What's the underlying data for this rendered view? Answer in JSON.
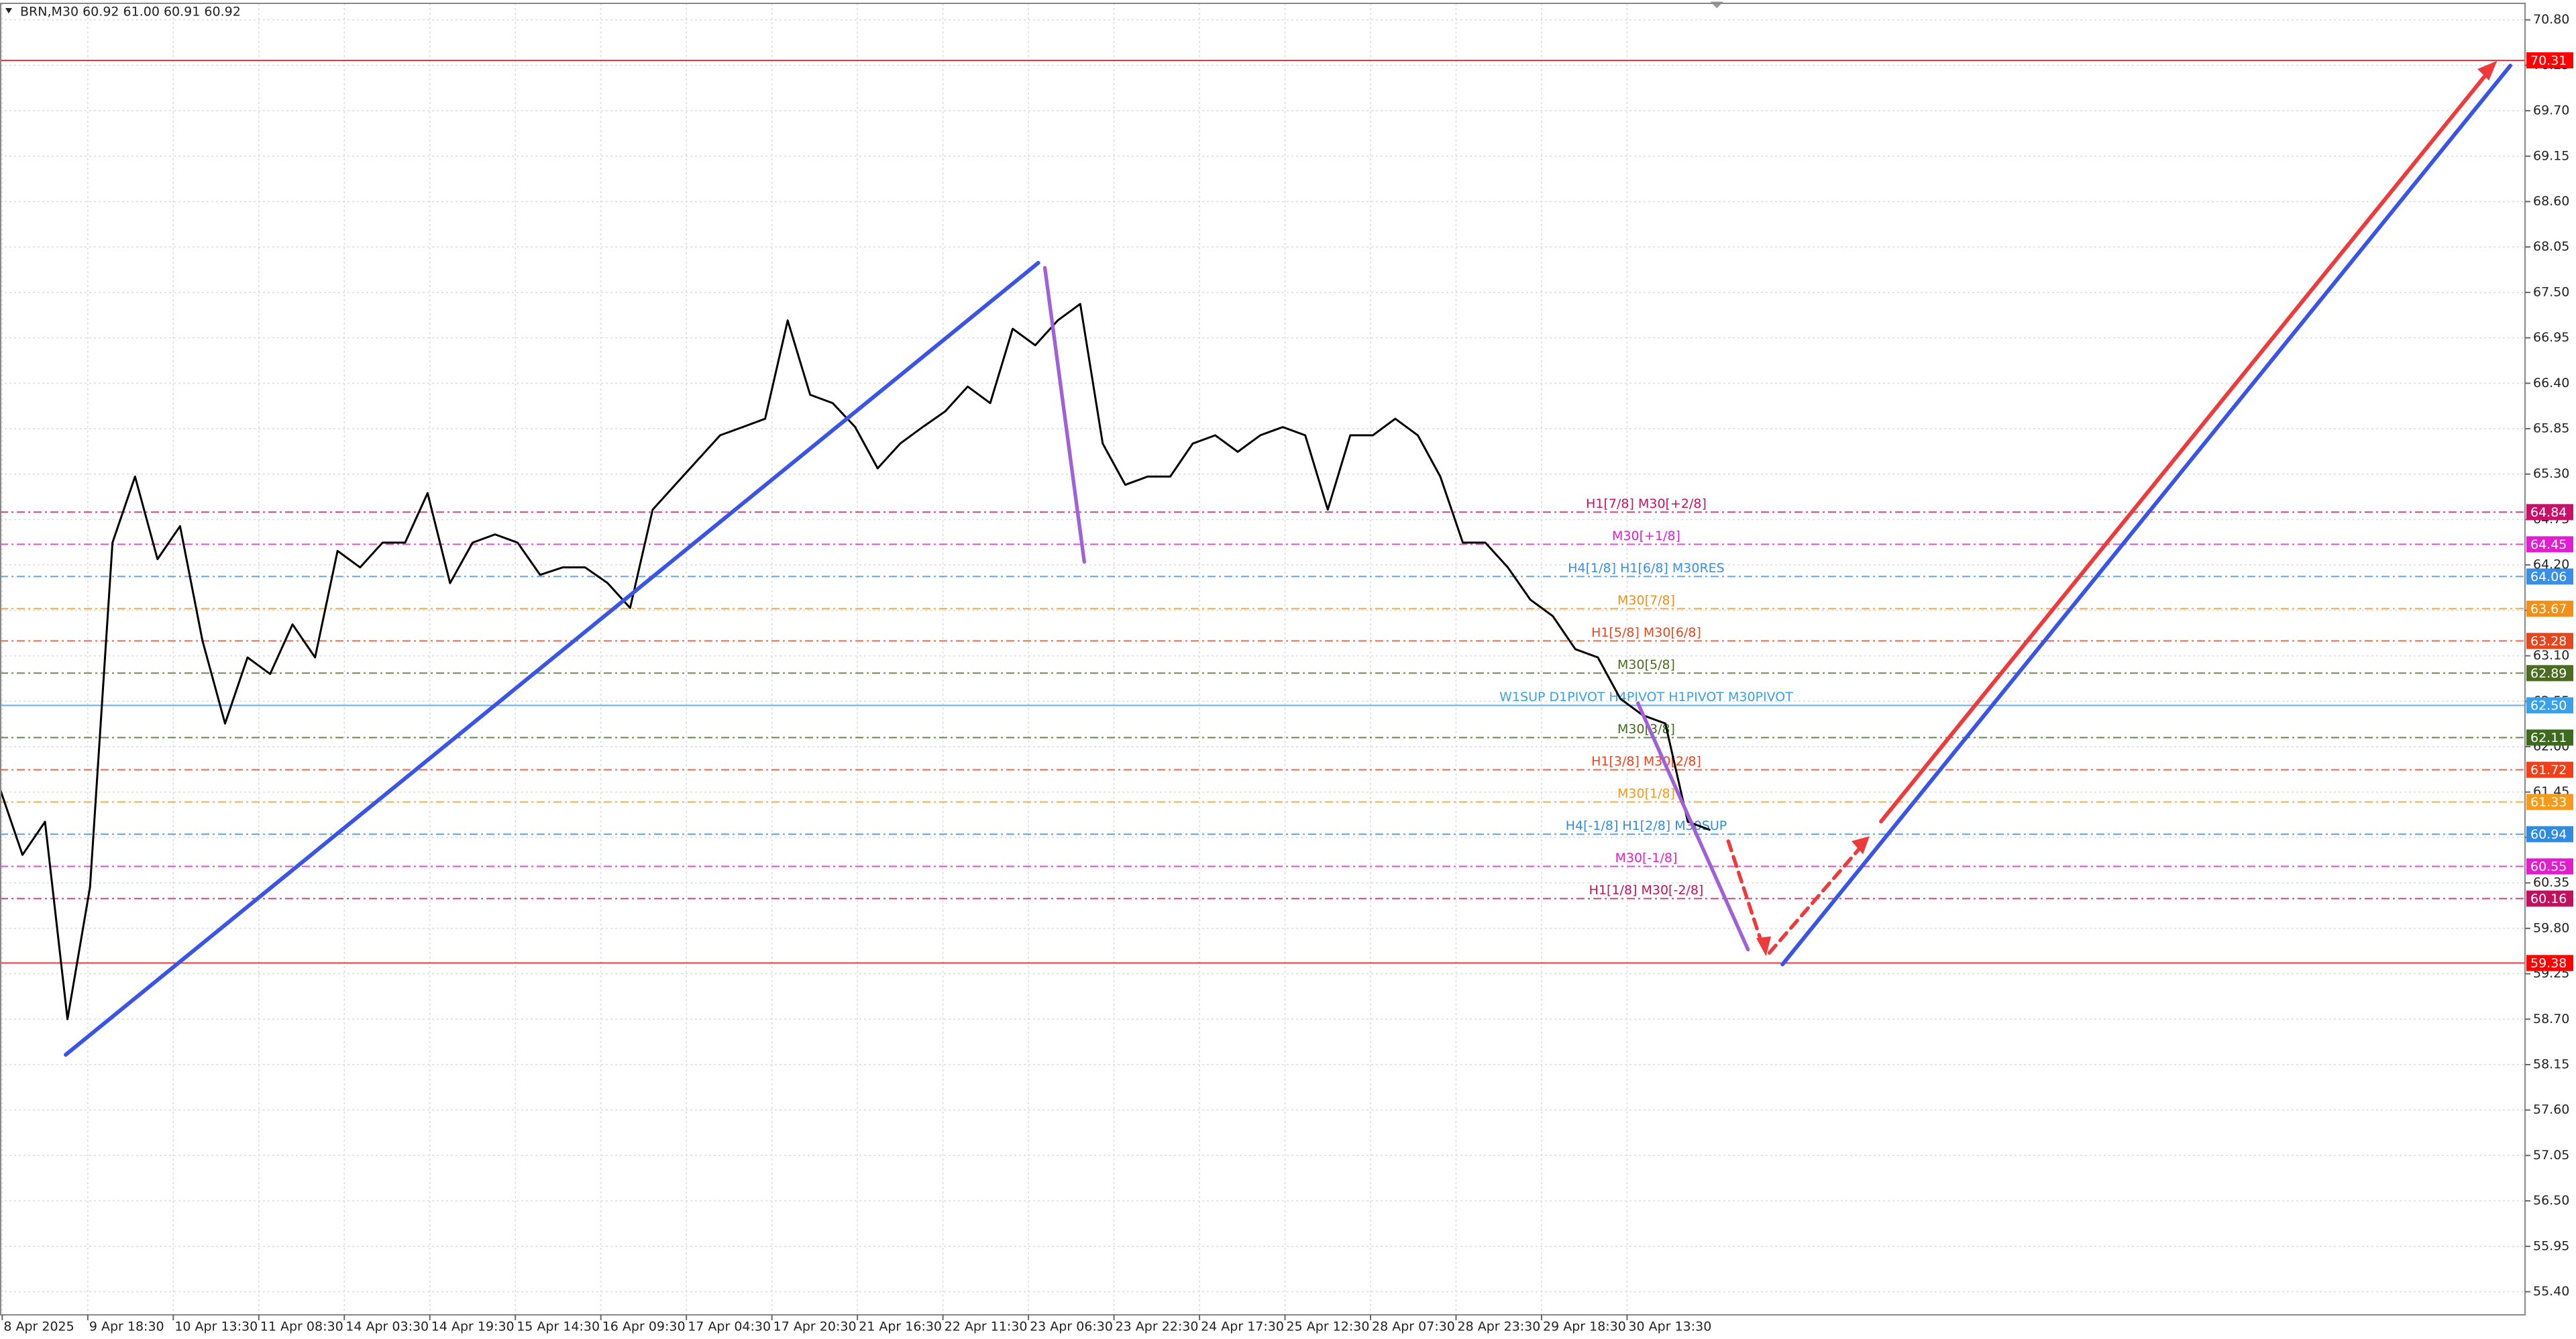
{
  "chart_data": {
    "type": "line",
    "title": "BRN,M30  60.92 61.00 60.91 60.92",
    "color": "#000000",
    "grid": true,
    "x": [
      0,
      10,
      20,
      30,
      40,
      50,
      60,
      70,
      80,
      90,
      100,
      110,
      120,
      130,
      140,
      150,
      160,
      170,
      180,
      190,
      200,
      210,
      220,
      230,
      240,
      250,
      260,
      270,
      280,
      290,
      300,
      310,
      320,
      330,
      340,
      350,
      360,
      370,
      380,
      390,
      400,
      410,
      420,
      430,
      440,
      450,
      460,
      470,
      480,
      490,
      500,
      510,
      520,
      530,
      540,
      550,
      560,
      570,
      580,
      590,
      600,
      610,
      620,
      630,
      640,
      650,
      660,
      670,
      680,
      690,
      700,
      710,
      720,
      730,
      740,
      750,
      760
    ],
    "values": [
      61.49,
      60.69,
      61.09,
      58.7,
      60.3,
      64.47,
      65.27,
      64.27,
      64.67,
      63.28,
      62.28,
      63.08,
      62.88,
      63.48,
      63.08,
      64.37,
      64.17,
      64.47,
      64.47,
      65.07,
      63.98,
      64.47,
      64.57,
      64.47,
      64.08,
      64.17,
      64.17,
      63.98,
      63.68,
      64.87,
      65.17,
      65.47,
      65.77,
      65.87,
      65.97,
      67.16,
      66.26,
      66.16,
      65.87,
      65.37,
      65.67,
      65.87,
      66.06,
      66.36,
      66.16,
      67.06,
      66.86,
      67.16,
      67.36,
      65.67,
      65.17,
      65.27,
      65.27,
      65.67,
      65.77,
      65.57,
      65.77,
      65.87,
      65.77,
      64.87,
      65.77,
      65.77,
      65.97,
      65.77,
      65.27,
      64.47,
      64.47,
      64.17,
      63.78,
      63.58,
      63.18,
      63.08,
      62.58,
      62.38,
      62.28,
      61.09,
      60.99
    ],
    "xlim": [
      0,
      1122
    ],
    "ylim": [
      55.12,
      71.0
    ],
    "xticks": [
      {
        "value": 1,
        "label": "8 Apr 2025"
      },
      {
        "value": 39,
        "label": "9 Apr 18:30"
      },
      {
        "value": 77,
        "label": "10 Apr 13:30"
      },
      {
        "value": 115,
        "label": "11 Apr 08:30"
      },
      {
        "value": 153,
        "label": "14 Apr 03:30"
      },
      {
        "value": 191,
        "label": "14 Apr 19:30"
      },
      {
        "value": 229,
        "label": "15 Apr 14:30"
      },
      {
        "value": 267,
        "label": "16 Apr 09:30"
      },
      {
        "value": 305,
        "label": "17 Apr 04:30"
      },
      {
        "value": 343,
        "label": "17 Apr 20:30"
      },
      {
        "value": 381,
        "label": "21 Apr 16:30"
      },
      {
        "value": 419,
        "label": "22 Apr 11:30"
      },
      {
        "value": 457,
        "label": "23 Apr 06:30"
      },
      {
        "value": 495,
        "label": "23 Apr 22:30"
      },
      {
        "value": 533,
        "label": "24 Apr 17:30"
      },
      {
        "value": 571,
        "label": "25 Apr 12:30"
      },
      {
        "value": 609,
        "label": "28 Apr 07:30"
      },
      {
        "value": 647,
        "label": "28 Apr 23:30"
      },
      {
        "value": 685,
        "label": "29 Apr 18:30"
      },
      {
        "value": 723,
        "label": "30 Apr 13:30"
      }
    ],
    "yticks": [
      {
        "value": 70.8,
        "label": "70.80"
      },
      70.25,
      {
        "value": 69.7,
        "label": "69.70"
      },
      69.15,
      {
        "value": 68.6,
        "label": "68.60"
      },
      68.05,
      {
        "value": 67.5,
        "label": "67.50"
      },
      66.95,
      {
        "value": 66.4,
        "label": "66.40"
      },
      65.85,
      {
        "value": 65.3,
        "label": "65.30"
      },
      64.75,
      {
        "value": 64.2,
        "label": "64.20"
      },
      63.65,
      {
        "value": 63.1,
        "label": "63.10"
      },
      62.55,
      {
        "value": 62.0,
        "label": "62.00"
      },
      61.45,
      {
        "value": 60.9,
        "label": "60.90"
      },
      60.35,
      {
        "value": 59.8,
        "label": "59.80"
      },
      59.25,
      {
        "value": 58.7,
        "label": "58.70"
      },
      58.15,
      {
        "value": 57.6,
        "label": "57.60"
      },
      57.05,
      {
        "value": 56.5,
        "label": "56.50"
      },
      55.95,
      {
        "value": 55.4,
        "label": "55.40"
      }
    ],
    "levels": [
      {
        "value": 70.31,
        "tag": "70.31",
        "color": "#ff0000",
        "style": "solid"
      },
      {
        "value": 64.84,
        "tag": "64.84",
        "label": "H1[7/8] M30[+2/8]",
        "color": "#c8106a",
        "style": "dashdot"
      },
      {
        "value": 64.45,
        "tag": "64.45",
        "label": "M30[+1/8]",
        "color": "#e020d0",
        "style": "dashdot"
      },
      {
        "value": 64.06,
        "tag": "64.06",
        "label": "H4[1/8] H1[6/8] M30RES",
        "color": "#3a8ee6",
        "style": "dashdot"
      },
      {
        "value": 63.67,
        "tag": "63.67",
        "label": "M30[7/8]",
        "color": "#f0901a",
        "style": "dashdot"
      },
      {
        "value": 63.28,
        "tag": "63.28",
        "label": "H1[5/8] M30[6/8]",
        "color": "#e6461e",
        "style": "dashdot"
      },
      {
        "value": 62.89,
        "tag": "62.89",
        "label": "M30[5/8]",
        "color": "#4b6b23",
        "style": "dashdot"
      },
      {
        "value": 62.5,
        "tag": "62.50",
        "label": "W1SUP D1PIVOT H4PIVOT H1PIVOT M30PIVOT",
        "color": "#3aa0e8",
        "style": "solid"
      },
      {
        "value": 62.11,
        "tag": "62.11",
        "label": "M30[3/8]",
        "color": "#3d6b1e",
        "style": "dashdot"
      },
      {
        "value": 61.72,
        "tag": "61.72",
        "label": "H1[3/8] M30[2/8]",
        "color": "#f0401a",
        "style": "dashdot"
      },
      {
        "value": 61.33,
        "tag": "61.33",
        "label": "M30[1/8]",
        "color": "#f59a1a",
        "style": "dashdot"
      },
      {
        "value": 60.94,
        "tag": "60.94",
        "label": "H4[-1/8] H1[2/8] M30SUP",
        "color": "#2e8be0",
        "style": "dashdot"
      },
      {
        "value": 60.55,
        "tag": "60.55",
        "label": "M30[-1/8]",
        "color": "#e01ecc",
        "style": "dashdot"
      },
      {
        "value": 60.16,
        "tag": "60.16",
        "label": "H1[1/8] M30[-2/8]",
        "color": "#c0105e",
        "style": "dashdot"
      },
      {
        "value": 59.38,
        "tag": "59.38",
        "color": "#ff0000",
        "style": "solid"
      }
    ]
  }
}
